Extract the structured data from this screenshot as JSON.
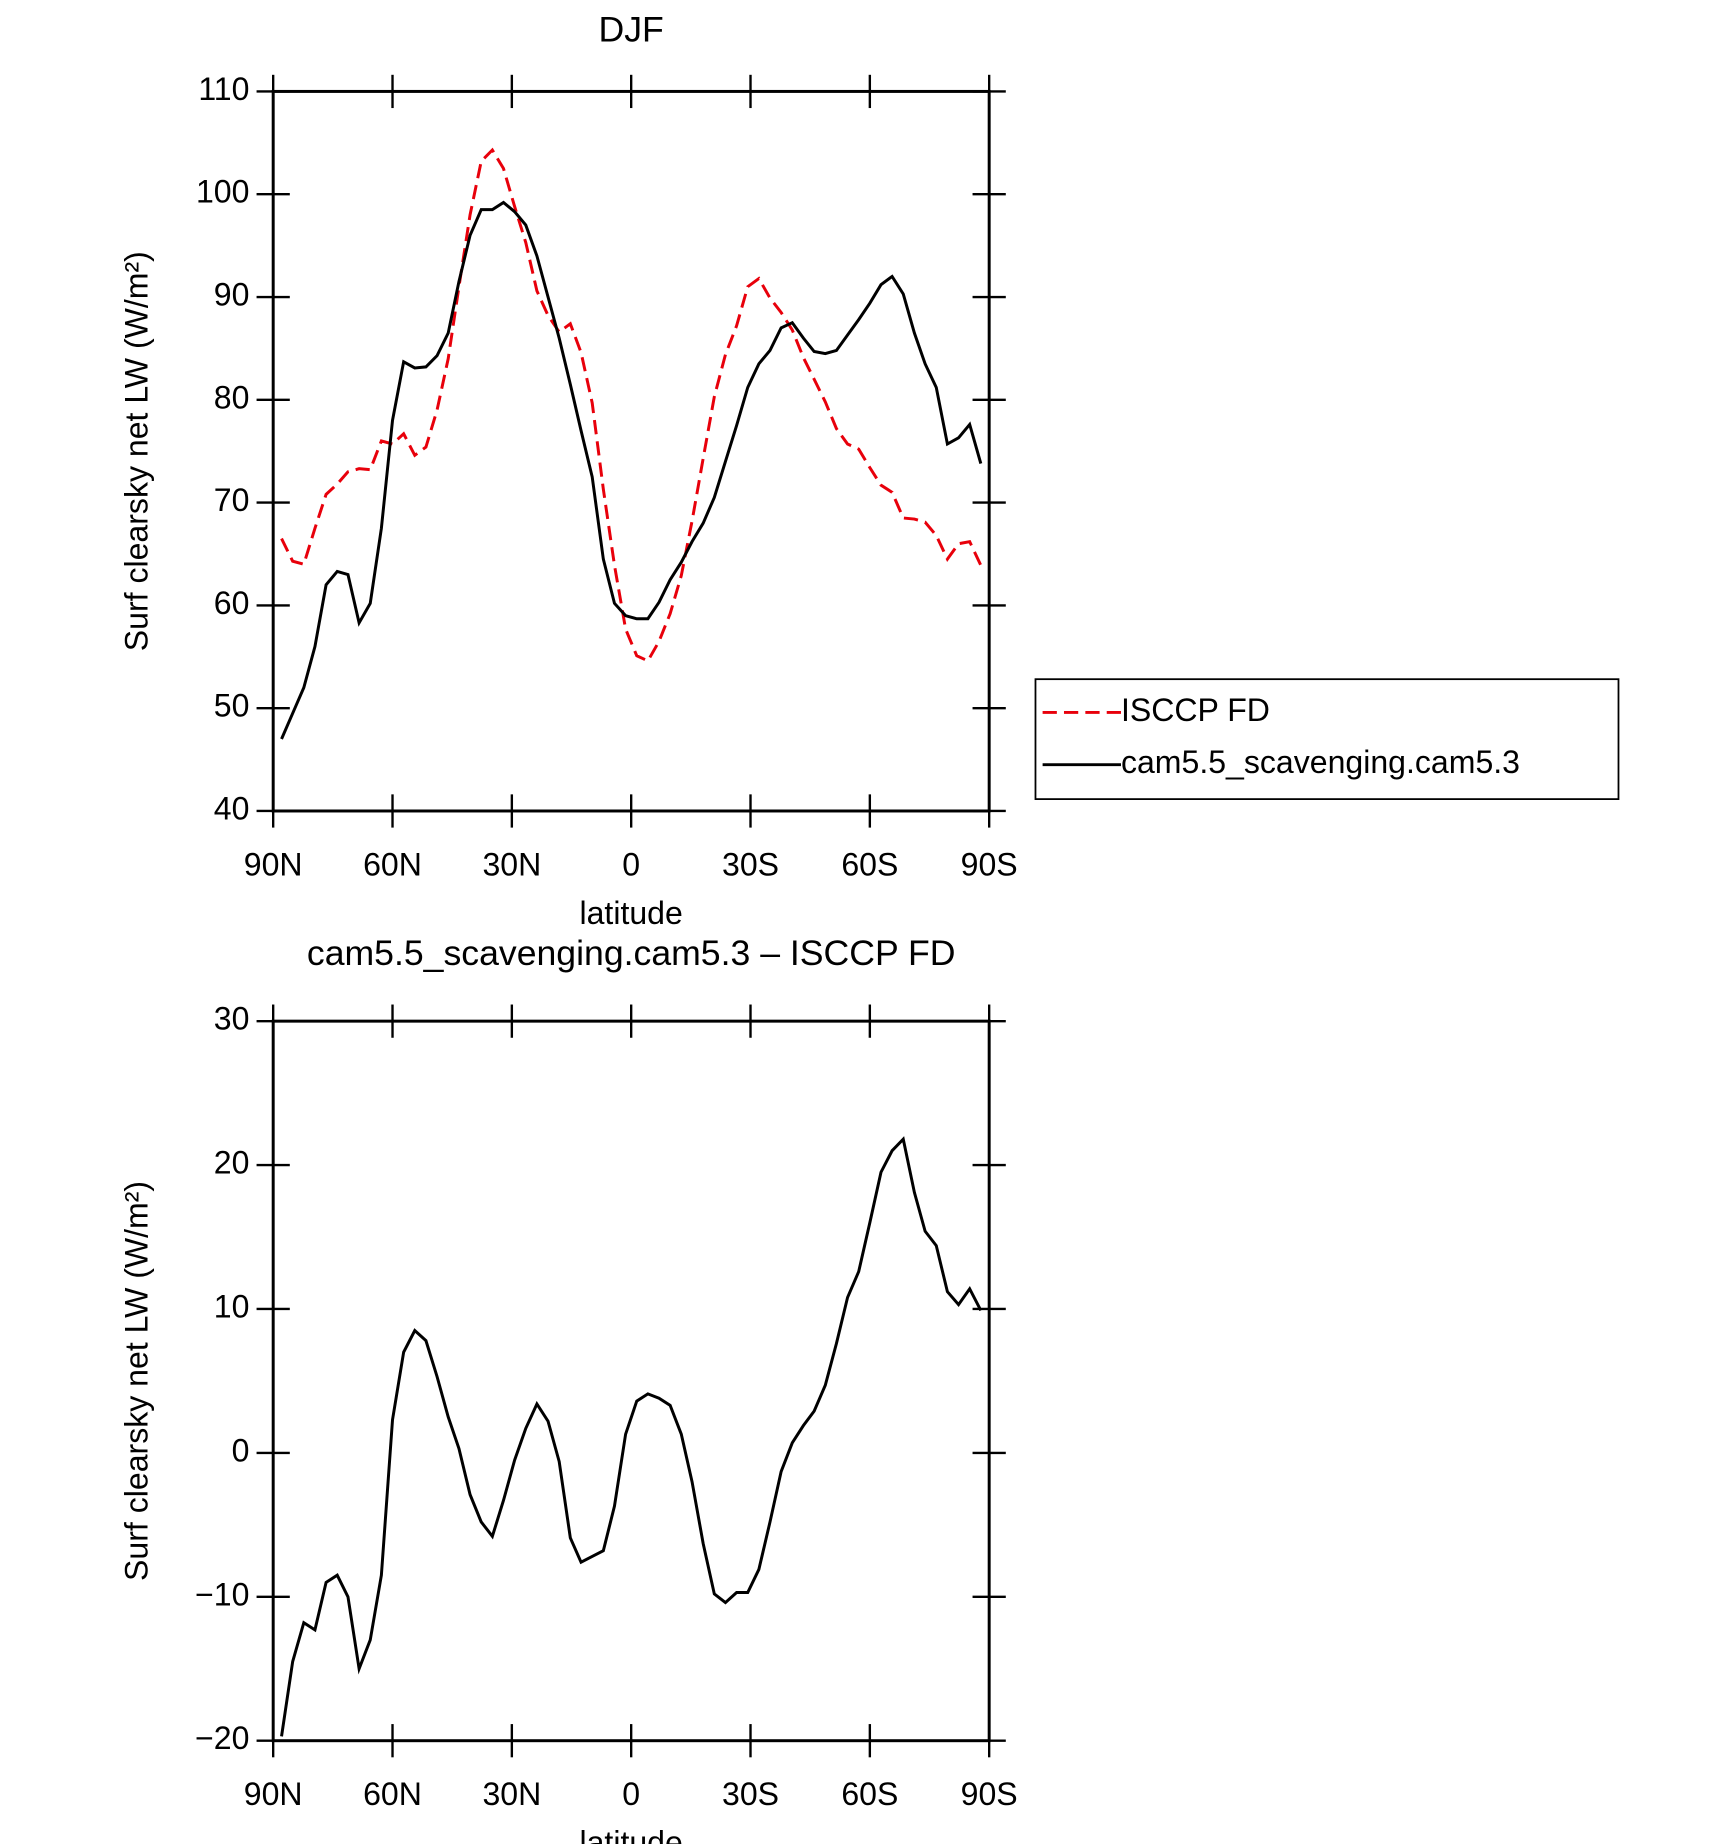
{
  "chart_data": [
    {
      "type": "line",
      "title": "DJF",
      "xlabel": "latitude",
      "ylabel": "Surf clearsky net LW (W/m²)",
      "x": [
        87.9,
        85.1,
        82.3,
        79.5,
        76.7,
        73.9,
        71.2,
        68.4,
        65.6,
        62.8,
        60.0,
        57.2,
        54.4,
        51.6,
        48.8,
        46.0,
        43.3,
        40.5,
        37.7,
        34.9,
        32.1,
        29.3,
        26.5,
        23.7,
        20.9,
        18.1,
        15.3,
        12.6,
        9.8,
        7.0,
        4.2,
        1.4,
        -1.4,
        -4.2,
        -7.0,
        -9.8,
        -12.6,
        -15.3,
        -18.1,
        -20.9,
        -23.7,
        -26.5,
        -29.3,
        -32.1,
        -34.9,
        -37.7,
        -40.5,
        -43.3,
        -46.0,
        -48.8,
        -51.6,
        -54.4,
        -57.2,
        -60.0,
        -62.8,
        -65.6,
        -68.4,
        -71.2,
        -73.9,
        -76.7,
        -79.5,
        -82.3,
        -85.1,
        -87.9
      ],
      "series": [
        {
          "name": "ISCCP FD",
          "color": "#e8000b",
          "style": "dashed",
          "values": [
            66.5,
            64.3,
            64,
            67.5,
            70.8,
            71.8,
            73,
            73.3,
            73.2,
            76,
            75.7,
            76.7,
            74.6,
            75.4,
            79,
            84,
            91,
            98,
            103.2,
            104.3,
            102.5,
            98.8,
            95.3,
            90.6,
            88.2,
            86.6,
            87.4,
            84.6,
            79.7,
            71.3,
            63.9,
            57.7,
            55.1,
            54.6,
            56.5,
            59.2,
            62.9,
            68.2,
            74.3,
            80.3,
            84.4,
            87.2,
            91,
            91.8,
            89.9,
            88.5,
            86.8,
            84.1,
            82,
            79.8,
            77.2,
            75.7,
            75.2,
            73.4,
            71.7,
            71,
            68.5,
            68.4,
            68.1,
            66.8,
            64.5,
            66,
            66.2,
            63.9
          ]
        },
        {
          "name": "cam5.5_scavenging.cam5.3",
          "color": "#000000",
          "style": "solid",
          "values": [
            47,
            49.5,
            52,
            56,
            62,
            63.3,
            63,
            58.3,
            60.2,
            67.5,
            78,
            83.7,
            83.1,
            83.2,
            84.3,
            86.5,
            91.5,
            96,
            98.5,
            98.5,
            99.2,
            98.3,
            97,
            94,
            90,
            86,
            81.5,
            77,
            72.5,
            64.5,
            60.2,
            59,
            58.7,
            58.7,
            60.3,
            62.5,
            64.2,
            66.2,
            68,
            70.5,
            74,
            77.5,
            81.2,
            83.5,
            84.8,
            87,
            87.5,
            86,
            84.7,
            84.5,
            84.8,
            86.3,
            87.8,
            89.4,
            91.2,
            92,
            90.3,
            86.5,
            83.5,
            81.2,
            75.7,
            76.3,
            77.6,
            73.8
          ]
        }
      ],
      "xlim": [
        90,
        -90
      ],
      "xticks": [
        {
          "value": 90,
          "label": "90N"
        },
        {
          "value": 60,
          "label": "60N"
        },
        {
          "value": 30,
          "label": "30N"
        },
        0,
        {
          "value": -30,
          "label": "30S"
        },
        {
          "value": -60,
          "label": "60S"
        },
        {
          "value": -90,
          "label": "90S"
        }
      ],
      "ylim": [
        40,
        110
      ],
      "yticks": [
        40,
        50,
        60,
        70,
        80,
        90,
        100,
        110
      ],
      "legend": "right"
    },
    {
      "type": "line",
      "title": "cam5.5_scavenging.cam5.3 – ISCCP FD",
      "xlabel": "latitude",
      "ylabel": "Surf clearsky net LW (W/m²)",
      "x": [
        87.9,
        85.1,
        82.3,
        79.5,
        76.7,
        73.9,
        71.2,
        68.4,
        65.6,
        62.8,
        60.0,
        57.2,
        54.4,
        51.6,
        48.8,
        46.0,
        43.3,
        40.5,
        37.7,
        34.9,
        32.1,
        29.3,
        26.5,
        23.7,
        20.9,
        18.1,
        15.3,
        12.6,
        9.8,
        7.0,
        4.2,
        1.4,
        -1.4,
        -4.2,
        -7.0,
        -9.8,
        -12.6,
        -15.3,
        -18.1,
        -20.9,
        -23.7,
        -26.5,
        -29.3,
        -32.1,
        -34.9,
        -37.7,
        -40.5,
        -43.3,
        -46.0,
        -48.8,
        -51.6,
        -54.4,
        -57.2,
        -60.0,
        -62.8,
        -65.6,
        -68.4,
        -71.2,
        -73.9,
        -76.7,
        -79.5,
        -82.3,
        -85.1,
        -87.9
      ],
      "series": [
        {
          "color": "#000000",
          "style": "solid",
          "values": [
            -19.7,
            -14.5,
            -11.8,
            -12.3,
            -9,
            -8.5,
            -10,
            -15,
            -13,
            -8.5,
            2.3,
            7,
            8.5,
            7.8,
            5.3,
            2.5,
            0.3,
            -2.9,
            -4.8,
            -5.8,
            -3.3,
            -0.5,
            1.7,
            3.4,
            2.2,
            -0.6,
            -5.9,
            -7.6,
            -7.2,
            -6.8,
            -3.7,
            1.3,
            3.6,
            4.1,
            3.8,
            3.3,
            1.3,
            -2,
            -6.3,
            -9.8,
            -10.4,
            -9.7,
            -9.7,
            -8.1,
            -4.8,
            -1.3,
            0.7,
            1.9,
            2.9,
            4.7,
            7.6,
            10.8,
            12.6,
            16,
            19.5,
            21,
            21.8,
            18.1,
            15.4,
            14.4,
            11.2,
            10.3,
            11.4,
            9.9
          ]
        }
      ],
      "xlim": [
        90,
        -90
      ],
      "xticks": [
        {
          "value": 90,
          "label": "90N"
        },
        {
          "value": 60,
          "label": "60N"
        },
        {
          "value": 30,
          "label": "30N"
        },
        0,
        {
          "value": -30,
          "label": "30S"
        },
        {
          "value": -60,
          "label": "60S"
        },
        {
          "value": -90,
          "label": "90S"
        }
      ],
      "ylim": [
        -20,
        30
      ],
      "yticks": [
        {
          "value": -20,
          "label": "−20"
        },
        {
          "value": -10,
          "label": "−10"
        },
        0,
        10,
        20,
        30
      ]
    }
  ]
}
